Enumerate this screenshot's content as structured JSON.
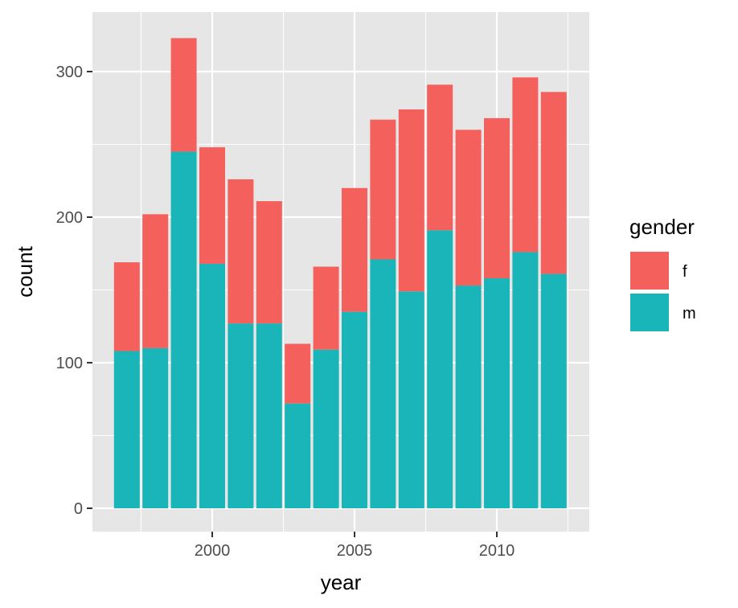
{
  "chart_data": {
    "type": "bar",
    "stacked": true,
    "x": [
      1997,
      1998,
      1999,
      2000,
      2001,
      2002,
      2003,
      2004,
      2005,
      2006,
      2007,
      2008,
      2009,
      2010,
      2011,
      2012
    ],
    "series": [
      {
        "name": "m",
        "color": "#19b5b8",
        "values": [
          108,
          110,
          245,
          168,
          127,
          127,
          72,
          109,
          135,
          171,
          149,
          191,
          153,
          158,
          176,
          161
        ]
      },
      {
        "name": "f",
        "color": "#f4615c",
        "values": [
          61,
          92,
          78,
          80,
          99,
          84,
          41,
          57,
          85,
          96,
          125,
          100,
          107,
          110,
          120,
          125
        ]
      }
    ],
    "xlabel": "year",
    "ylabel": "count",
    "xticks": [
      "2000",
      "2005",
      "2010"
    ],
    "yticks": [
      "0",
      "100",
      "200",
      "300"
    ],
    "ylim": [
      0,
      340
    ],
    "legend": {
      "title": "gender",
      "position": "right",
      "entries": [
        {
          "label": "f",
          "color": "#f4615c"
        },
        {
          "label": "m",
          "color": "#19b5b8"
        }
      ]
    },
    "grid": true,
    "panel_background": "#e6e6e6"
  }
}
